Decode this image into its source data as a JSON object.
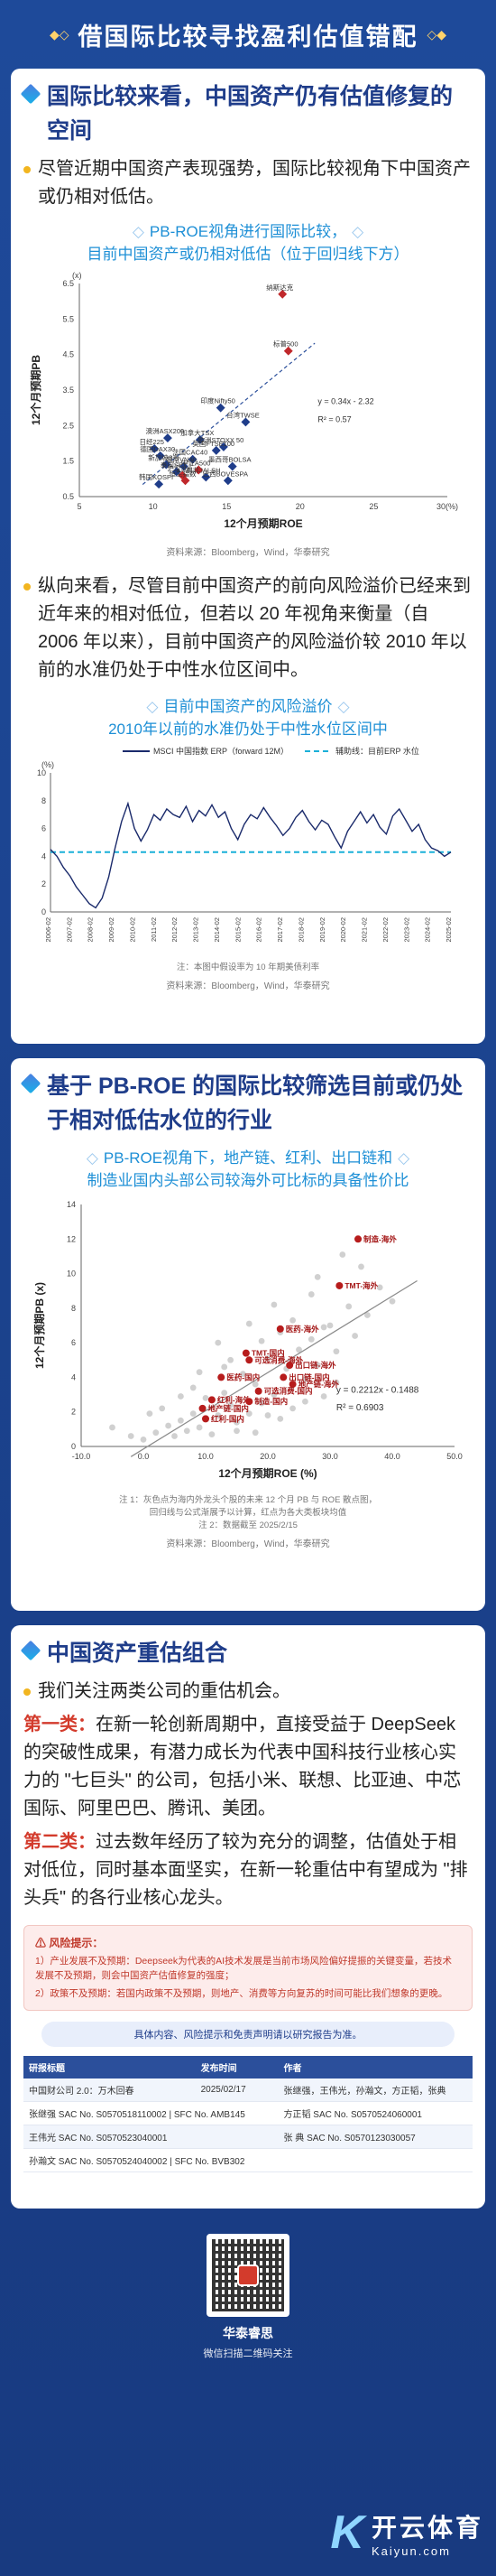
{
  "banner": {
    "title": "借国际比较寻找盈利估值错配"
  },
  "section1": {
    "heading": "国际比较来看，中国资产仍有估值修复的空间",
    "bullet1": "尽管近期中国资产表现强势，国际比较视角下中国资产或仍相对低估。",
    "chart_title_l1": "PB-ROE视角进行国际比较，",
    "chart_title_l2": "目前中国资产或仍相对低估（位于回归线下方）",
    "source": "资料来源：Bloomberg，Wind，华泰研究",
    "bullet2": "纵向来看，尽管目前中国资产的前向风险溢价已经来到近年来的相对低位，但若以 20 年视角来衡量（自 2006 年以来），目前中国资产的风险溢价较 2010 年以前的水准仍处于中性水位区间中。",
    "chart2_title_l1": "目前中国资产的风险溢价",
    "chart2_title_l2": "2010年以前的水准仍处于中性水位区间中",
    "chart2_note": "注：本图中假设率为 10 年期美债利率",
    "chart2_source": "资料来源：Bloomberg，Wind，华泰研究"
  },
  "section2": {
    "heading": "基于 PB-ROE 的国际比较筛选目前或仍处于相对低估水位的行业",
    "chart_title_l1": "PB-ROE视角下，地产链、红利、出口链和",
    "chart_title_l2": "制造业国内头部公司较海外可比标的具备性价比",
    "note1": "注 1：灰色点为海内外龙头个股的未来 12 个月 PB 与 ROE 散点图，",
    "note1b": "回归线与公式渐展予以计算，红点为各大类板块均值",
    "note2": "注 2：数据截至 2025/2/15",
    "source": "资料来源：Bloomberg，Wind，华泰研究"
  },
  "section3": {
    "heading": "中国资产重估组合",
    "bullet1": "我们关注两类公司的重估机会。",
    "cat1_label": "第一类：",
    "cat1_text": "在新一轮创新周期中，直接受益于 DeepSeek 的突破性成果，有潜力成长为代表中国科技行业核心实力的 \"七巨头\" 的公司，包括小米、联想、比亚迪、中芯国际、阿里巴巴、腾讯、美团。",
    "cat2_label": "第二类：",
    "cat2_text": "过去数年经历了较为充分的调整，估值处于相对低位，同时基本面坚实，在新一轮重估中有望成为 \"排头兵\" 的各行业核心龙头。"
  },
  "risk": {
    "title": "风险提示：",
    "item1": "1）产业发展不及预期：Deepseek为代表的AI技术发展是当前市场风险偏好提振的关键变量，若技术发展不及预期，则会中国资产估值修复的强度；",
    "item2": "2）政策不及预期：若国内政策不及预期，则地产、消费等方向复苏的时间可能比我们想象的更晚。"
  },
  "disclaimer": "具体内容、风险提示和免责声明请以研究报告为准。",
  "report_table": {
    "headers": [
      "研报标题",
      "发布时间",
      "作者"
    ],
    "row": [
      "中国财公司 2.0：万木回春",
      "2025/02/17",
      "张继强，王伟光，孙瀚文，方正韬，张典"
    ],
    "people": [
      [
        "张继强 SAC No. S0570518110002 | SFC No. AMB145",
        "方正韬 SAC No. S0570524060001"
      ],
      [
        "王伟光 SAC No. S0570523040001",
        "张 典 SAC No. S0570123030057"
      ],
      [
        "孙瀚文 SAC No. S0570524040002 | SFC No. BVB302",
        ""
      ]
    ]
  },
  "footer": {
    "name": "华泰睿思",
    "hint": "微信扫描二维码关注"
  },
  "watermark": {
    "logo": "K",
    "cn": "开云体育",
    "en": "Kaiyun.com"
  },
  "chart_data": [
    {
      "type": "scatter",
      "title": "",
      "xlabel": "12个月预期ROE",
      "ylabel": "12个月预期PB",
      "xlim": [
        5,
        30
      ],
      "ylim": [
        0.5,
        6.5
      ],
      "xticks": [
        "5",
        "10",
        "15",
        "20",
        "25",
        "30(%)"
      ],
      "yticks": [
        "0.5",
        "1.5",
        "2.5",
        "3.5",
        "4.5",
        "5.5",
        "6.5"
      ],
      "y_unit": "(x)",
      "fit_label": "y = 0.34x - 2.32",
      "r2_label": "R² = 0.57",
      "points": [
        {
          "x": 18.8,
          "y": 6.2,
          "label": "纳斯达克",
          "red": true
        },
        {
          "x": 19.2,
          "y": 4.6,
          "label": "标普500",
          "red": true
        },
        {
          "x": 14.6,
          "y": 3.0,
          "label": "印度Nifty50",
          "red": false
        },
        {
          "x": 16.3,
          "y": 2.6,
          "label": "台湾TWSE",
          "red": false
        },
        {
          "x": 13.2,
          "y": 2.1,
          "label": "加拿大TSX",
          "red": false
        },
        {
          "x": 11.0,
          "y": 2.15,
          "label": "澳洲ASX200",
          "red": false
        },
        {
          "x": 14.8,
          "y": 1.9,
          "label": "欧洲STOXX 50",
          "red": false
        },
        {
          "x": 10.1,
          "y": 1.85,
          "label": "日经225",
          "red": false
        },
        {
          "x": 14.3,
          "y": 1.8,
          "label": "英国FTSE100",
          "red": false
        },
        {
          "x": 10.5,
          "y": 1.65,
          "label": "德国DAX30",
          "red": false
        },
        {
          "x": 12.7,
          "y": 1.55,
          "label": "法国CAC40",
          "red": false
        },
        {
          "x": 12.1,
          "y": 1.35,
          "label": "越南VN30",
          "red": false
        },
        {
          "x": 10.9,
          "y": 1.4,
          "label": "新加坡STI",
          "red": false
        },
        {
          "x": 15.4,
          "y": 1.35,
          "label": "墨西哥BOLSA",
          "red": false
        },
        {
          "x": 13.1,
          "y": 1.25,
          "label": "中证A500",
          "red": true
        },
        {
          "x": 11.6,
          "y": 1.2,
          "label": "泰国SET",
          "red": false
        },
        {
          "x": 12.0,
          "y": 1.1,
          "label": "沪深300",
          "red": true
        },
        {
          "x": 13.6,
          "y": 1.05,
          "label": "南非JALSH",
          "red": false
        },
        {
          "x": 10.4,
          "y": 0.85,
          "label": "韩国KOSPI",
          "red": false
        },
        {
          "x": 12.2,
          "y": 0.95,
          "label": "恒生指数",
          "red": true
        },
        {
          "x": 15.1,
          "y": 0.95,
          "label": "巴西BOVESPA",
          "red": false
        }
      ]
    },
    {
      "type": "line",
      "title": "",
      "legend": [
        "MSCI 中国指数 ERP（forward 12M）",
        "辅助线：目前ERP 水位"
      ],
      "ylim": [
        0,
        10
      ],
      "yticks": [
        "0",
        "2",
        "4",
        "6",
        "8",
        "10"
      ],
      "y_unit": "(%)",
      "xticks": [
        "2006-02",
        "2007-02",
        "2008-02",
        "2009-02",
        "2010-02",
        "2011-02",
        "2012-02",
        "2013-02",
        "2014-02",
        "2015-02",
        "2016-02",
        "2017-02",
        "2018-02",
        "2019-02",
        "2020-02",
        "2021-02",
        "2022-02",
        "2023-02",
        "2024-02",
        "2025-02"
      ],
      "current_level": 4.3,
      "series": [
        {
          "name": "MSCI 中国指数 ERP（forward 12M）",
          "values": [
            4.5,
            4.0,
            3.2,
            2.6,
            1.8,
            1.2,
            0.6,
            0.3,
            1.0,
            2.5,
            4.6,
            6.5,
            7.8,
            6.0,
            5.1,
            5.9,
            7.0,
            6.6,
            7.4,
            7.0,
            6.8,
            7.6,
            6.5,
            7.3,
            6.9,
            7.7,
            6.8,
            7.2,
            6.0,
            5.2,
            6.3,
            7.0,
            6.7,
            7.5,
            6.8,
            6.2,
            5.5,
            6.0,
            6.8,
            7.3,
            6.5,
            5.9,
            6.6,
            6.3,
            5.4,
            4.6,
            5.8,
            6.5,
            7.2,
            6.4,
            7.0,
            6.1,
            5.6,
            6.9,
            7.4,
            6.6,
            5.8,
            6.3,
            5.2,
            4.6,
            4.4,
            4.0,
            4.3
          ]
        }
      ]
    },
    {
      "type": "scatter",
      "title": "",
      "xlabel": "12个月预期ROE (%)",
      "ylabel": "12个月预期PB (x)",
      "xlim": [
        -10,
        50
      ],
      "ylim": [
        0,
        14
      ],
      "xticks": [
        "-10.0",
        "0.0",
        "10.0",
        "20.0",
        "30.0",
        "40.0",
        "50.0"
      ],
      "yticks": [
        "0",
        "2",
        "4",
        "6",
        "8",
        "10",
        "12",
        "14"
      ],
      "fit_label": "y = 0.2212x - 0.1488",
      "r2_label": "R² = 0.6903",
      "red_points": [
        {
          "x": 34.5,
          "y": 12.0,
          "label": "制造-海外"
        },
        {
          "x": 31.5,
          "y": 9.3,
          "label": "TMT-海外"
        },
        {
          "x": 22.0,
          "y": 6.8,
          "label": "医药-海外"
        },
        {
          "x": 16.5,
          "y": 5.4,
          "label": "TMT-国内"
        },
        {
          "x": 17.0,
          "y": 5.0,
          "label": "可选消费-海外"
        },
        {
          "x": 23.5,
          "y": 4.7,
          "label": "出口链-海外"
        },
        {
          "x": 12.5,
          "y": 4.0,
          "label": "医药-国内"
        },
        {
          "x": 22.5,
          "y": 4.0,
          "label": "出口链-国内"
        },
        {
          "x": 24.0,
          "y": 3.6,
          "label": "地产链-海外"
        },
        {
          "x": 18.5,
          "y": 3.2,
          "label": "可选消费-国内"
        },
        {
          "x": 11.0,
          "y": 2.7,
          "label": "红利-海外"
        },
        {
          "x": 17.0,
          "y": 2.6,
          "label": "制造-国内"
        },
        {
          "x": 9.5,
          "y": 2.2,
          "label": "地产链-国内"
        },
        {
          "x": 10.0,
          "y": 1.6,
          "label": "红利-国内"
        }
      ],
      "grey_points": [
        [
          2,
          0.8
        ],
        [
          4,
          1.2
        ],
        [
          5,
          0.6
        ],
        [
          6,
          1.5
        ],
        [
          7,
          0.9
        ],
        [
          8,
          1.9
        ],
        [
          9,
          1.1
        ],
        [
          10,
          2.8
        ],
        [
          11,
          0.7
        ],
        [
          12,
          1.8
        ],
        [
          13,
          3.1
        ],
        [
          14,
          2.4
        ],
        [
          15,
          1.4
        ],
        [
          16,
          4.2
        ],
        [
          17,
          1.9
        ],
        [
          18,
          3.6
        ],
        [
          19,
          2.5
        ],
        [
          20,
          5.1
        ],
        [
          21,
          3.0
        ],
        [
          22,
          1.6
        ],
        [
          23,
          4.5
        ],
        [
          24,
          2.2
        ],
        [
          25,
          5.6
        ],
        [
          26,
          3.9
        ],
        [
          27,
          6.2
        ],
        [
          28,
          4.7
        ],
        [
          29,
          2.9
        ],
        [
          30,
          7.0
        ],
        [
          31,
          5.5
        ],
        [
          33,
          8.1
        ],
        [
          34,
          6.4
        ],
        [
          36,
          7.6
        ],
        [
          38,
          9.2
        ],
        [
          40,
          8.4
        ],
        [
          3,
          2.2
        ],
        [
          8,
          3.4
        ],
        [
          14,
          5.0
        ],
        [
          19,
          6.1
        ],
        [
          24,
          7.3
        ],
        [
          15,
          0.9
        ],
        [
          20,
          1.8
        ],
        [
          26,
          2.6
        ],
        [
          9,
          4.3
        ],
        [
          28,
          9.8
        ],
        [
          12,
          6.0
        ],
        [
          6,
          2.9
        ],
        [
          21,
          8.2
        ],
        [
          17,
          7.1
        ],
        [
          31,
          3.7
        ],
        [
          35,
          10.4
        ],
        [
          1,
          1.9
        ],
        [
          -2,
          0.6
        ],
        [
          -5,
          1.1
        ],
        [
          0,
          0.4
        ],
        [
          32,
          11.1
        ],
        [
          27,
          8.8
        ],
        [
          22,
          6.6
        ],
        [
          13,
          4.6
        ],
        [
          29,
          6.9
        ],
        [
          18,
          0.8
        ]
      ]
    }
  ]
}
